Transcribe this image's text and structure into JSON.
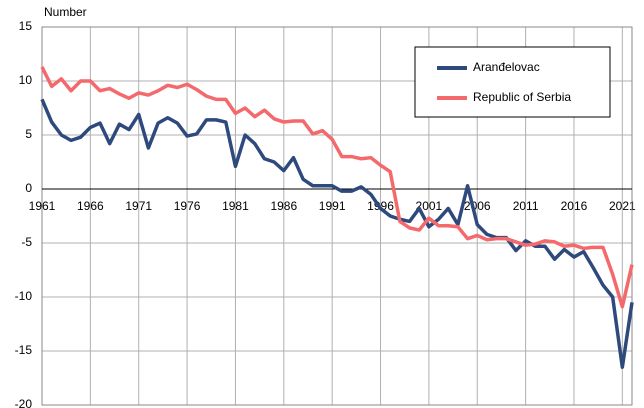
{
  "chart_data": {
    "type": "line",
    "y_label": "Number",
    "x": [
      1961,
      1962,
      1963,
      1964,
      1965,
      1966,
      1967,
      1968,
      1969,
      1970,
      1971,
      1972,
      1973,
      1974,
      1975,
      1976,
      1977,
      1978,
      1979,
      1980,
      1981,
      1982,
      1983,
      1984,
      1985,
      1986,
      1987,
      1988,
      1989,
      1990,
      1991,
      1992,
      1993,
      1994,
      1995,
      1996,
      1997,
      1998,
      1999,
      2000,
      2001,
      2002,
      2003,
      2004,
      2005,
      2006,
      2007,
      2008,
      2009,
      2010,
      2011,
      2012,
      2013,
      2014,
      2015,
      2016,
      2017,
      2018,
      2019,
      2020,
      2021,
      2022
    ],
    "series": [
      {
        "name": "Aranđelovac",
        "color": "#2e4a7d",
        "values": [
          8.3,
          6.2,
          5.0,
          4.5,
          4.8,
          5.7,
          6.1,
          4.2,
          6.0,
          5.5,
          6.9,
          3.8,
          6.1,
          6.6,
          6.1,
          4.9,
          5.1,
          6.4,
          6.4,
          6.2,
          2.1,
          5.0,
          4.2,
          2.8,
          2.5,
          1.7,
          2.9,
          0.9,
          0.3,
          0.3,
          0.3,
          -0.2,
          -0.2,
          0.2,
          -0.5,
          -1.8,
          -2.5,
          -2.8,
          -3.0,
          -1.8,
          -3.5,
          -2.8,
          -1.8,
          -3.3,
          0.3,
          -3.3,
          -4.2,
          -4.5,
          -4.5,
          -5.7,
          -4.8,
          -5.3,
          -5.3,
          -6.5,
          -5.6,
          -6.3,
          -5.8,
          -7.3,
          -8.9,
          -10.0,
          -16.5,
          -10.5
        ]
      },
      {
        "name": "Republic of Serbia",
        "color": "#f4696b",
        "values": [
          11.3,
          9.5,
          10.2,
          9.1,
          10.0,
          10.0,
          9.1,
          9.3,
          8.8,
          8.4,
          8.9,
          8.7,
          9.1,
          9.6,
          9.4,
          9.7,
          9.2,
          8.6,
          8.3,
          8.3,
          7.0,
          7.5,
          6.7,
          7.3,
          6.5,
          6.2,
          6.3,
          6.3,
          5.1,
          5.4,
          4.6,
          3.0,
          3.0,
          2.8,
          2.9,
          2.2,
          1.6,
          -3.0,
          -3.6,
          -3.8,
          -2.7,
          -3.4,
          -3.4,
          -3.5,
          -4.6,
          -4.3,
          -4.7,
          -4.6,
          -4.6,
          -4.9,
          -5.2,
          -5.1,
          -4.8,
          -4.9,
          -5.3,
          -5.2,
          -5.5,
          -5.4,
          -5.4,
          -7.9,
          -10.9,
          -7.0
        ]
      }
    ],
    "xlim": [
      1961,
      2022
    ],
    "xticks": [
      1961,
      1966,
      1971,
      1976,
      1981,
      1986,
      1991,
      1996,
      2001,
      2006,
      2011,
      2016,
      2021
    ],
    "ylim": [
      -20,
      15
    ],
    "yticks": [
      -20,
      -15,
      -10,
      -5,
      0,
      5,
      10,
      15
    ],
    "grid": true,
    "legend": "upper right"
  }
}
